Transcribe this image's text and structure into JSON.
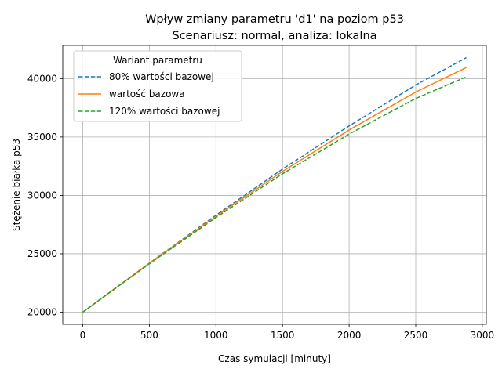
{
  "chart_data": {
    "type": "line",
    "title": "Wpływ zmiany parametru 'd1' na poziom p53",
    "subtitle": "Scenariusz: normal, analiza: lokalna",
    "xlabel": "Czas symulacji [minuty]",
    "ylabel": "Stężenie białka p53",
    "xlim": [
      -150,
      3030
    ],
    "ylim": [
      18960,
      42840
    ],
    "xticks": [
      0,
      500,
      1000,
      1500,
      2000,
      2500,
      3000
    ],
    "yticks": [
      20000,
      25000,
      30000,
      35000,
      40000
    ],
    "grid": true,
    "legend": {
      "title": "Wariant parametru",
      "placement": "top-left"
    },
    "series": [
      {
        "name": "80% wartości bazowej",
        "color": "#1f77b4",
        "dash": "dashed",
        "x": [
          0,
          500,
          1000,
          1500,
          2000,
          2500,
          2880
        ],
        "values": [
          20000,
          24200,
          28300,
          32250,
          35950,
          39450,
          41800
        ]
      },
      {
        "name": "wartość bazowa",
        "color": "#ff7f0e",
        "dash": "solid",
        "x": [
          0,
          500,
          1000,
          1500,
          2000,
          2500,
          2880
        ],
        "values": [
          20000,
          24200,
          28200,
          32050,
          35600,
          38850,
          40950
        ]
      },
      {
        "name": "120% wartości bazowej",
        "color": "#2ca02c",
        "dash": "dashed",
        "x": [
          0,
          500,
          1000,
          1500,
          2000,
          2500,
          2880
        ],
        "values": [
          20000,
          24150,
          28100,
          31850,
          35250,
          38300,
          40150
        ]
      }
    ]
  }
}
